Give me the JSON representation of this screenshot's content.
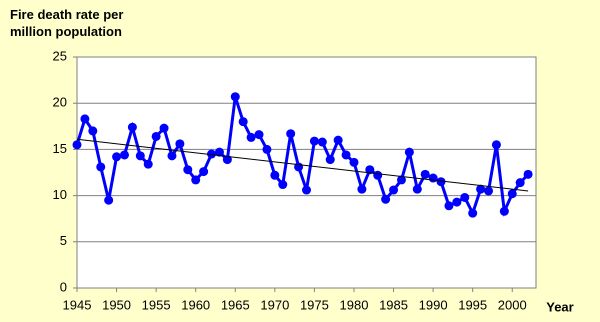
{
  "chart_data": {
    "type": "line",
    "title": "Fire death rate per million population",
    "x_label": "Year",
    "x": [
      1945,
      1946,
      1947,
      1948,
      1949,
      1950,
      1951,
      1952,
      1953,
      1954,
      1955,
      1956,
      1957,
      1958,
      1959,
      1960,
      1961,
      1962,
      1963,
      1964,
      1965,
      1966,
      1967,
      1968,
      1969,
      1970,
      1971,
      1972,
      1973,
      1974,
      1975,
      1976,
      1977,
      1978,
      1979,
      1980,
      1981,
      1982,
      1983,
      1984,
      1985,
      1986,
      1987,
      1988,
      1989,
      1990,
      1991,
      1992,
      1993,
      1994,
      1995,
      1996,
      1997,
      1998,
      1999,
      2000,
      2001,
      2002
    ],
    "series": [
      {
        "color": "#0000ff",
        "values": [
          15.5,
          18.3,
          17.0,
          13.1,
          9.5,
          14.2,
          14.4,
          17.4,
          14.3,
          13.4,
          16.4,
          17.3,
          14.3,
          15.6,
          12.8,
          11.7,
          12.6,
          14.5,
          14.7,
          13.9,
          20.7,
          18.0,
          16.3,
          16.6,
          15.0,
          12.2,
          11.2,
          16.7,
          13.1,
          10.6,
          15.9,
          15.8,
          13.9,
          16.0,
          14.4,
          13.6,
          10.7,
          12.8,
          12.2,
          9.6,
          10.6,
          11.7,
          14.7,
          10.7,
          12.3,
          11.9,
          11.5,
          8.9,
          9.3,
          9.8,
          8.1,
          10.7,
          10.5,
          15.5,
          8.3,
          10.2,
          11.4,
          12.3
        ]
      }
    ],
    "trendline": {
      "x": [
        1945,
        2002
      ],
      "values": [
        16.1,
        10.5
      ],
      "color": "#000000"
    },
    "xlim": [
      1945,
      2003
    ],
    "xticks": [
      1945,
      1950,
      1955,
      1960,
      1965,
      1970,
      1975,
      1980,
      1985,
      1990,
      1995,
      2000
    ],
    "ylim": [
      0,
      25
    ],
    "yticks": [
      0,
      5,
      10,
      15,
      20,
      25
    ],
    "grid": true
  }
}
